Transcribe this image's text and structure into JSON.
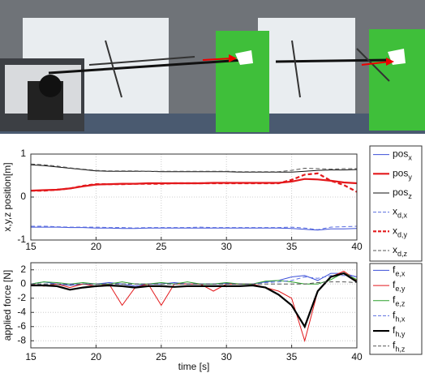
{
  "chart_data": [
    {
      "type": "line",
      "ylabel": "x,y,z position[m]",
      "x": [
        15,
        16,
        17,
        18,
        19,
        20,
        21,
        22,
        23,
        24,
        25,
        26,
        27,
        28,
        29,
        30,
        31,
        32,
        33,
        34,
        35,
        36,
        37,
        38,
        39,
        40
      ],
      "xlim": [
        15,
        40
      ],
      "xticks": [
        15,
        20,
        25,
        30,
        35,
        40
      ],
      "ylim": [
        -1,
        1
      ],
      "yticks": [
        -1,
        0,
        1
      ],
      "grid": true,
      "series": [
        {
          "name": "pos",
          "subscript": "x",
          "color": "#3b4fd8",
          "linestyle": "solid",
          "linewidth": 1,
          "values": [
            -0.7,
            -0.7,
            -0.7,
            -0.71,
            -0.71,
            -0.72,
            -0.72,
            -0.73,
            -0.73,
            -0.72,
            -0.72,
            -0.72,
            -0.72,
            -0.72,
            -0.72,
            -0.72,
            -0.72,
            -0.72,
            -0.72,
            -0.72,
            -0.73,
            -0.75,
            -0.77,
            -0.74,
            -0.74,
            -0.73
          ]
        },
        {
          "name": "pos",
          "subscript": "y",
          "color": "#e3191c",
          "linestyle": "solid",
          "linewidth": 2.2,
          "values": [
            0.15,
            0.16,
            0.17,
            0.2,
            0.25,
            0.29,
            0.3,
            0.31,
            0.31,
            0.32,
            0.32,
            0.32,
            0.32,
            0.32,
            0.33,
            0.33,
            0.33,
            0.33,
            0.33,
            0.33,
            0.36,
            0.42,
            0.41,
            0.38,
            0.34,
            0.32
          ]
        },
        {
          "name": "pos",
          "subscript": "z",
          "color": "#111111",
          "linestyle": "solid",
          "linewidth": 1,
          "values": [
            0.75,
            0.73,
            0.7,
            0.67,
            0.64,
            0.61,
            0.6,
            0.6,
            0.6,
            0.6,
            0.59,
            0.59,
            0.59,
            0.59,
            0.59,
            0.59,
            0.58,
            0.58,
            0.58,
            0.58,
            0.58,
            0.6,
            0.62,
            0.63,
            0.63,
            0.64
          ]
        },
        {
          "name": "x",
          "subscript": "d,x",
          "color": "#5a6ee0",
          "linestyle": "dashed",
          "linewidth": 1,
          "values": [
            -0.68,
            -0.68,
            -0.69,
            -0.7,
            -0.7,
            -0.7,
            -0.71,
            -0.71,
            -0.72,
            -0.71,
            -0.71,
            -0.71,
            -0.71,
            -0.7,
            -0.71,
            -0.71,
            -0.71,
            -0.71,
            -0.71,
            -0.71,
            -0.7,
            -0.72,
            -0.76,
            -0.7,
            -0.69,
            -0.68
          ]
        },
        {
          "name": "x",
          "subscript": "d,y",
          "color": "#e3191c",
          "linestyle": "dashed",
          "linewidth": 2.2,
          "values": [
            0.15,
            0.15,
            0.17,
            0.2,
            0.26,
            0.3,
            0.3,
            0.3,
            0.31,
            0.31,
            0.31,
            0.32,
            0.32,
            0.32,
            0.32,
            0.32,
            0.32,
            0.32,
            0.32,
            0.32,
            0.4,
            0.52,
            0.55,
            0.38,
            0.28,
            0.12
          ]
        },
        {
          "name": "x",
          "subscript": "d,z",
          "color": "#555555",
          "linestyle": "dashed",
          "linewidth": 1,
          "values": [
            0.77,
            0.75,
            0.72,
            0.68,
            0.65,
            0.62,
            0.61,
            0.61,
            0.61,
            0.6,
            0.6,
            0.6,
            0.6,
            0.6,
            0.6,
            0.6,
            0.59,
            0.59,
            0.59,
            0.59,
            0.62,
            0.67,
            0.66,
            0.65,
            0.66,
            0.66
          ]
        }
      ]
    },
    {
      "type": "line",
      "ylabel": "applied force [N]",
      "xlabel": "time [s]",
      "x": [
        15,
        16,
        17,
        18,
        19,
        20,
        21,
        22,
        23,
        24,
        25,
        26,
        27,
        28,
        29,
        30,
        31,
        32,
        33,
        34,
        35,
        36,
        37,
        38,
        39,
        40
      ],
      "xlim": [
        15,
        40
      ],
      "xticks": [
        15,
        20,
        25,
        30,
        35,
        40
      ],
      "ylim": [
        -9,
        3
      ],
      "yticks": [
        2,
        0,
        -2,
        -4,
        -6,
        -8
      ],
      "grid": true,
      "series": [
        {
          "name": "f",
          "subscript": "e,x",
          "color": "#3b4fd8",
          "linestyle": "solid",
          "linewidth": 1,
          "values": [
            0,
            0.3,
            0,
            -0.2,
            0,
            0,
            0.2,
            0,
            -0.3,
            0,
            0,
            0.2,
            0,
            0,
            0,
            0.1,
            0,
            0,
            0.3,
            0.5,
            1,
            1.2,
            0.5,
            1.5,
            1.5,
            1
          ]
        },
        {
          "name": "f",
          "subscript": "e,y",
          "color": "#e3191c",
          "linestyle": "solid",
          "linewidth": 1,
          "values": [
            0,
            -0.3,
            0,
            -0.5,
            0,
            -0.3,
            0,
            -3,
            -0.5,
            0,
            -3,
            0,
            0,
            0,
            -1,
            0,
            0,
            0,
            -0.5,
            -1,
            -2,
            -8,
            -1,
            1,
            1.8,
            0.5
          ]
        },
        {
          "name": "f",
          "subscript": "e,z",
          "color": "#2ca02c",
          "linestyle": "solid",
          "linewidth": 1,
          "values": [
            0,
            0.3,
            0.2,
            0,
            0.2,
            0,
            0,
            0.3,
            0,
            0,
            0.2,
            0,
            0.3,
            0,
            0,
            0.2,
            0,
            0,
            0.4,
            0.5,
            0.3,
            0,
            0,
            0.6,
            1.6,
            0.6
          ]
        },
        {
          "name": "f",
          "subscript": "h,x",
          "color": "#5a6ee0",
          "linestyle": "dashed",
          "linewidth": 1,
          "values": [
            0,
            0,
            0,
            0,
            0,
            0,
            0,
            0,
            0,
            0,
            0,
            0,
            0,
            0,
            0,
            0,
            0,
            0,
            0.2,
            0.3,
            0.5,
            1,
            0.8,
            1.2,
            1.2,
            1
          ]
        },
        {
          "name": "f",
          "subscript": "h,y",
          "color": "#000000",
          "linestyle": "solid",
          "linewidth": 2.2,
          "values": [
            -0.2,
            -0.2,
            -0.3,
            -0.8,
            -0.5,
            -0.3,
            -0.2,
            -0.3,
            -0.5,
            -0.3,
            -0.3,
            -0.4,
            -0.3,
            -0.3,
            -0.3,
            -0.3,
            -0.3,
            -0.2,
            -0.5,
            -1.5,
            -3,
            -6,
            -1,
            1,
            1.5,
            0.3
          ]
        },
        {
          "name": "f",
          "subscript": "h,z",
          "color": "#555555",
          "linestyle": "dashed",
          "linewidth": 1,
          "values": [
            0,
            0,
            0,
            -0.1,
            0,
            0,
            0,
            0,
            0,
            0,
            0,
            0,
            0,
            0,
            0,
            0,
            0,
            0,
            0,
            0,
            0,
            0,
            0.2,
            0.3,
            0.3,
            0.2
          ]
        }
      ]
    }
  ]
}
